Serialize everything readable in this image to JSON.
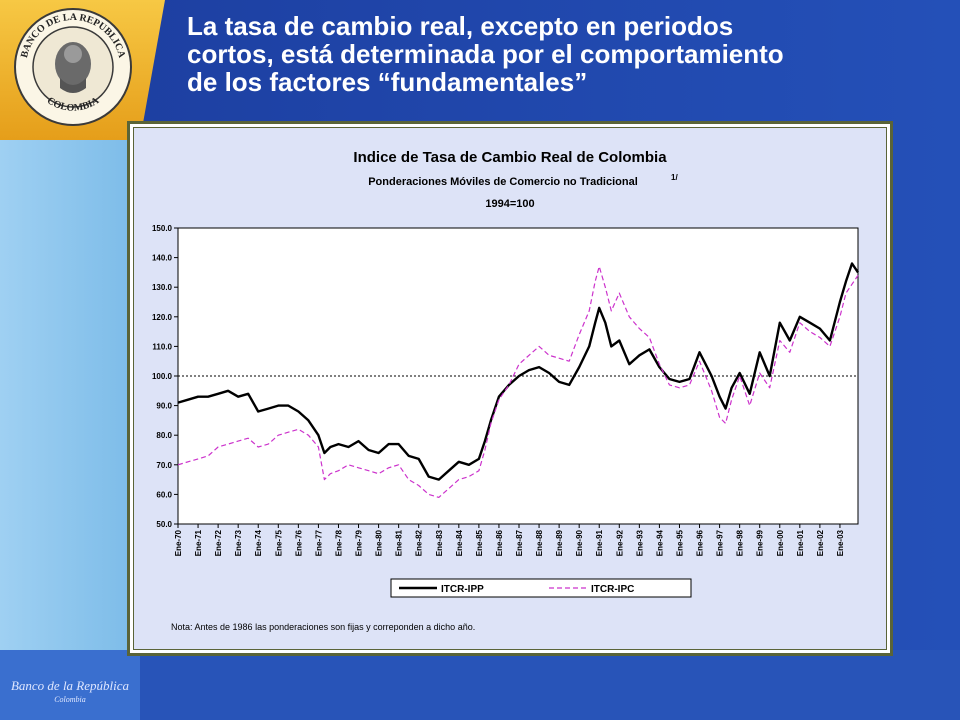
{
  "slide": {
    "title_lines": [
      "La tasa de cambio real, excepto en periodos",
      "cortos, está determinada por el comportamiento",
      "de los factores “fundamentales”"
    ],
    "seal_top_text": "BANCO DE LA REPUBLICA",
    "seal_bottom_text": "COLOMBIA",
    "footer_logo_line1": "Banco de la República",
    "footer_logo_line2": "Colombia",
    "colors": {
      "background": "#1f44a8",
      "accent_gold": "#f0b42a",
      "light_blue": "#8fc7ee"
    }
  },
  "chart_data": {
    "type": "line",
    "title": "Indice de Tasa de Cambio Real de Colombia",
    "subtitle": "Ponderaciones Móviles de Comercio no Tradicional",
    "subtitle_superscript": "1/",
    "base_label": "1994=100",
    "ylim": [
      50,
      150
    ],
    "y_ticks": [
      "50.0",
      "60.0",
      "70.0",
      "80.0",
      "90.0",
      "100.0",
      "110.0",
      "120.0",
      "130.0",
      "140.0",
      "150.0"
    ],
    "x_tick_labels": [
      "Ene-70",
      "Ene-71",
      "Ene-72",
      "Ene-73",
      "Ene-74",
      "Ene-75",
      "Ene-76",
      "Ene-77",
      "Ene-78",
      "Ene-79",
      "Ene-80",
      "Ene-81",
      "Ene-82",
      "Ene-83",
      "Ene-84",
      "Ene-85",
      "Ene-86",
      "Ene-87",
      "Ene-88",
      "Ene-89",
      "Ene-90",
      "Ene-91",
      "Ene-92",
      "Ene-93",
      "Ene-94",
      "Ene-95",
      "Ene-96",
      "Ene-97",
      "Ene-98",
      "Ene-99",
      "Ene-00",
      "Ene-01",
      "Ene-02",
      "Ene-03"
    ],
    "x_range": [
      1970.0,
      2003.9
    ],
    "reference_line": 100,
    "grid": false,
    "legend_position": "bottom",
    "note": "Nota: Antes de 1986 las ponderaciones son fijas y correponden a dicho año.",
    "series": [
      {
        "name": "ITCR-IPP",
        "color": "#000000",
        "style": "solid",
        "x": [
          1970.0,
          1970.5,
          1971.0,
          1971.5,
          1972.0,
          1972.5,
          1973.0,
          1973.5,
          1974.0,
          1974.5,
          1975.0,
          1975.5,
          1976.0,
          1976.5,
          1977.0,
          1977.3,
          1977.6,
          1978.0,
          1978.5,
          1979.0,
          1979.5,
          1980.0,
          1980.5,
          1981.0,
          1981.5,
          1982.0,
          1982.5,
          1983.0,
          1983.5,
          1984.0,
          1984.5,
          1985.0,
          1985.3,
          1985.6,
          1986.0,
          1986.5,
          1987.0,
          1987.5,
          1988.0,
          1988.5,
          1989.0,
          1989.5,
          1990.0,
          1990.5,
          1990.8,
          1991.0,
          1991.3,
          1991.6,
          1992.0,
          1992.5,
          1993.0,
          1993.5,
          1994.0,
          1994.5,
          1995.0,
          1995.5,
          1996.0,
          1996.3,
          1996.6,
          1997.0,
          1997.3,
          1997.6,
          1998.0,
          1998.5,
          1999.0,
          1999.5,
          2000.0,
          2000.5,
          2001.0,
          2001.5,
          2002.0,
          2002.5,
          2003.0,
          2003.3,
          2003.6,
          2003.9
        ],
        "y": [
          91,
          92,
          93,
          93,
          94,
          95,
          93,
          94,
          88,
          89,
          90,
          90,
          88,
          85,
          80,
          74,
          76,
          77,
          76,
          78,
          75,
          74,
          77,
          77,
          73,
          72,
          66,
          65,
          68,
          71,
          70,
          72,
          78,
          85,
          93,
          97,
          100,
          102,
          103,
          101,
          98,
          97,
          103,
          110,
          118,
          123,
          118,
          110,
          112,
          104,
          107,
          109,
          103,
          99,
          98,
          99,
          108,
          104,
          100,
          93,
          89,
          96,
          101,
          94,
          108,
          100,
          118,
          112,
          120,
          118,
          116,
          112,
          125,
          132,
          138,
          135
        ]
      },
      {
        "name": "ITCR-IPC",
        "color": "#cc33cc",
        "style": "dashed",
        "x": [
          1970.0,
          1970.5,
          1971.0,
          1971.5,
          1972.0,
          1972.5,
          1973.0,
          1973.5,
          1974.0,
          1974.5,
          1975.0,
          1975.5,
          1976.0,
          1976.5,
          1977.0,
          1977.3,
          1977.6,
          1978.0,
          1978.5,
          1979.0,
          1979.5,
          1980.0,
          1980.5,
          1981.0,
          1981.5,
          1982.0,
          1982.5,
          1983.0,
          1983.5,
          1984.0,
          1984.5,
          1985.0,
          1985.3,
          1985.6,
          1986.0,
          1986.5,
          1987.0,
          1987.5,
          1988.0,
          1988.5,
          1989.0,
          1989.5,
          1990.0,
          1990.5,
          1990.8,
          1991.0,
          1991.3,
          1991.6,
          1992.0,
          1992.5,
          1993.0,
          1993.5,
          1994.0,
          1994.5,
          1995.0,
          1995.5,
          1996.0,
          1996.3,
          1996.6,
          1997.0,
          1997.3,
          1997.6,
          1998.0,
          1998.5,
          1999.0,
          1999.5,
          2000.0,
          2000.5,
          2001.0,
          2001.5,
          2002.0,
          2002.5,
          2003.0,
          2003.3,
          2003.6,
          2003.9
        ],
        "y": [
          70,
          71,
          72,
          73,
          76,
          77,
          78,
          79,
          76,
          77,
          80,
          81,
          82,
          80,
          76,
          65,
          67,
          68,
          70,
          69,
          68,
          67,
          69,
          70,
          65,
          63,
          60,
          59,
          62,
          65,
          66,
          68,
          75,
          84,
          92,
          97,
          104,
          107,
          110,
          107,
          106,
          105,
          114,
          122,
          132,
          137,
          130,
          122,
          128,
          120,
          116,
          113,
          104,
          97,
          96,
          97,
          105,
          100,
          95,
          86,
          84,
          92,
          100,
          90,
          101,
          96,
          112,
          108,
          118,
          115,
          113,
          110,
          120,
          128,
          131,
          134
        ]
      }
    ]
  }
}
